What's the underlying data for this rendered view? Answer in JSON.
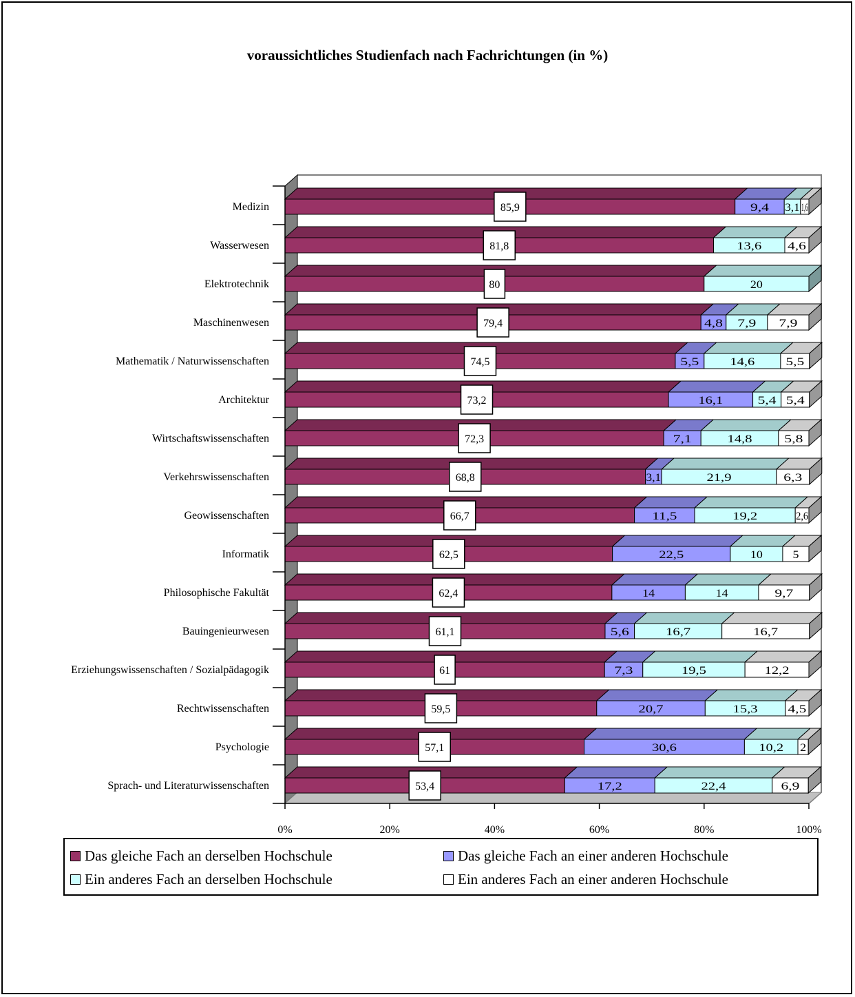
{
  "chart_data": {
    "type": "bar",
    "orientation": "horizontal",
    "stacked": "percent",
    "title": "voraussichtliches Studienfach nach Fachrichtungen (in %)",
    "categories": [
      "Medizin",
      "Wasserwesen",
      "Elektrotechnik",
      "Maschinenwesen",
      "Mathematik / Naturwissenschaften",
      "Architektur",
      "Wirtschaftswissenschaften",
      "Verkehrswissenschaften",
      "Geowissenschaften",
      "Informatik",
      "Philosophische Fakultät",
      "Bauingenieurwesen",
      "Erziehungswissenschaften / Sozialpädagogik",
      "Rechtwissenschaften",
      "Psychologie",
      "Sprach- und Literaturwissenschaften"
    ],
    "series": [
      {
        "name": "Das gleiche Fach an derselben Hochschule",
        "color": "#993366",
        "values": [
          85.9,
          81.8,
          80,
          79.4,
          74.5,
          73.2,
          72.3,
          68.8,
          66.7,
          62.5,
          62.4,
          61.1,
          61,
          59.5,
          57.1,
          53.4
        ]
      },
      {
        "name": "Das gleiche Fach an einer anderen Hochschule",
        "color": "#9999FF",
        "values": [
          9.4,
          0,
          0,
          4.8,
          5.5,
          16.1,
          7.1,
          3.1,
          11.5,
          22.5,
          14,
          5.6,
          7.3,
          20.7,
          30.6,
          17.2
        ]
      },
      {
        "name": "Ein anderes Fach an derselben Hochschule",
        "color": "#CCFFFF",
        "values": [
          3.1,
          13.6,
          20,
          7.9,
          14.6,
          5.4,
          14.8,
          21.9,
          19.2,
          10,
          14,
          16.7,
          19.5,
          15.3,
          10.2,
          22.4
        ]
      },
      {
        "name": "Ein anderes Fach an einer anderen Hochschule",
        "color": "#FFFFFF",
        "values": [
          1.6,
          4.6,
          0,
          7.9,
          5.5,
          5.4,
          5.8,
          6.3,
          2.6,
          5,
          9.7,
          16.7,
          12.2,
          4.5,
          2,
          6.9
        ]
      }
    ],
    "labels": [
      [
        "85,9",
        "9,4",
        "3,1",
        "1,6"
      ],
      [
        "81,8",
        "",
        "13,6",
        "4,6"
      ],
      [
        "80",
        "",
        "20",
        ""
      ],
      [
        "79,4",
        "4,8",
        "7,9",
        "7,9"
      ],
      [
        "74,5",
        "5,5",
        "14,6",
        "5,5"
      ],
      [
        "73,2",
        "16,1",
        "5,4",
        "5,4"
      ],
      [
        "72,3",
        "7,1",
        "14,8",
        "5,8"
      ],
      [
        "68,8",
        "3,1",
        "21,9",
        "6,3"
      ],
      [
        "66,7",
        "11,5",
        "19,2",
        "2,6"
      ],
      [
        "62,5",
        "22,5",
        "10",
        "5"
      ],
      [
        "62,4",
        "14",
        "14",
        "9,7"
      ],
      [
        "61,1",
        "5,6",
        "16,7",
        "16,7"
      ],
      [
        "61",
        "7,3",
        "19,5",
        "12,2"
      ],
      [
        "59,5",
        "20,7",
        "15,3",
        "4,5"
      ],
      [
        "57,1",
        "30,6",
        "10,2",
        "2"
      ],
      [
        "53,4",
        "17,2",
        "22,4",
        "6,9"
      ]
    ],
    "xticks": [
      "0%",
      "20%",
      "40%",
      "60%",
      "80%",
      "100%"
    ],
    "xlim": [
      0,
      100
    ],
    "xlabel": "",
    "ylabel": "",
    "grid": false,
    "legend_position": "bottom",
    "style": "3d"
  }
}
